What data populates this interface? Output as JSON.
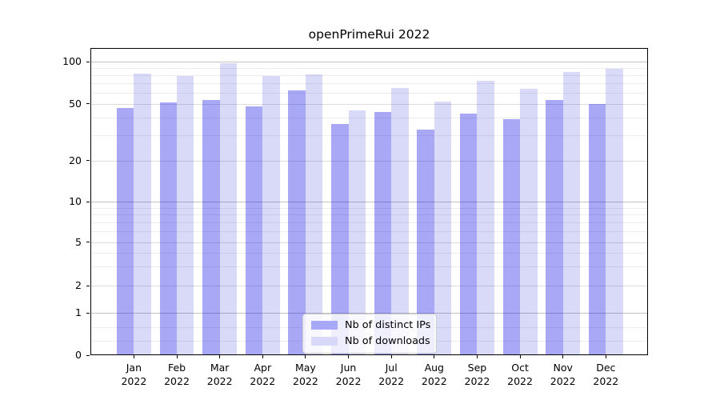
{
  "figure": {
    "title": "openPrimeRui 2022"
  },
  "chart_data": {
    "type": "bar",
    "title": "openPrimeRui 2022",
    "categories": [
      "Jan",
      "Feb",
      "Mar",
      "Apr",
      "May",
      "Jun",
      "Jul",
      "Aug",
      "Sep",
      "Oct",
      "Nov",
      "Dec"
    ],
    "category_year": "2022",
    "series": [
      {
        "name": "Nb of distinct IPs",
        "swatch_color": "#a8a8f8",
        "bar_fill": "rgba(0,0,230,0.34)",
        "values": [
          47,
          51,
          53,
          48,
          62,
          36,
          44,
          33,
          43,
          39,
          53,
          50
        ]
      },
      {
        "name": "Nb of downloads",
        "swatch_color": "#d8d8f8",
        "bar_fill": "rgba(0,0,210,0.15)",
        "values": [
          82,
          79,
          98,
          79,
          81,
          45,
          65,
          52,
          73,
          64,
          84,
          89
        ]
      }
    ],
    "yscale": "symlog",
    "ylim": [
      0,
      125
    ],
    "y_ticks": [
      100,
      50,
      20,
      10,
      5,
      2,
      1,
      0
    ],
    "y_decade_ticks": [
      1,
      10,
      100
    ],
    "y_minor_gridlines": [
      90,
      80,
      70,
      60,
      40,
      30,
      9,
      8,
      7,
      6,
      4,
      3,
      0.667,
      0.333
    ],
    "grid": true,
    "legend_position": "lower center",
    "xlabel": "",
    "ylabel": ""
  }
}
